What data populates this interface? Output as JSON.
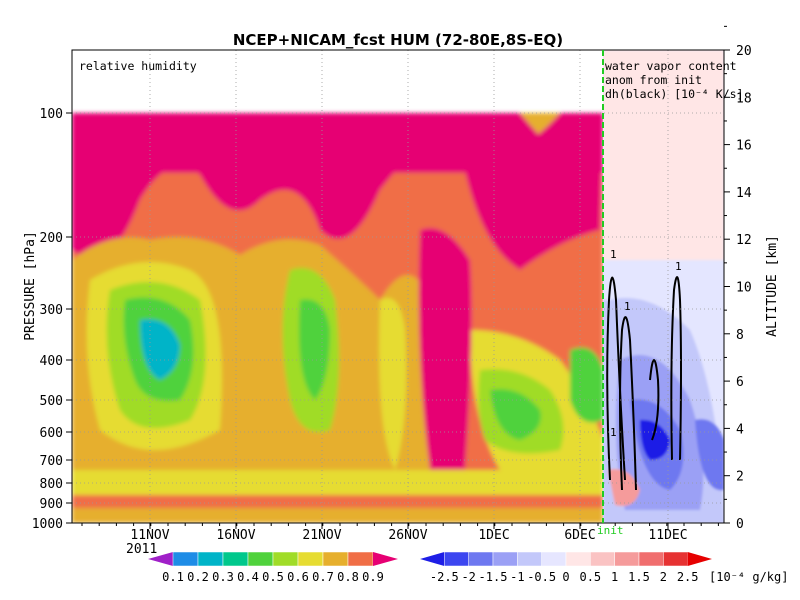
{
  "chart_data": {
    "type": "heatmap",
    "title": "NCEP+NICAM_fcst HUM (72-80E,8S-EQ)",
    "left_panel_label": "relative humidity",
    "right_panel_label": [
      "water vapor content",
      "anom from init",
      "dh(black) [10⁻⁴ K/s]"
    ],
    "ylabel_left": "PRESSURE [hPa]",
    "ylabel_right": "ALTITUDE [km]",
    "pressure_ticks": [
      "100",
      "200",
      "300",
      "400",
      "500",
      "600",
      "700",
      "800",
      "900",
      "1000"
    ],
    "altitude_ticks": [
      "0",
      "2",
      "4",
      "6",
      "8",
      "10",
      "12",
      "14",
      "16",
      "18",
      "20"
    ],
    "date_ticks": [
      "11NOV",
      "16NOV",
      "21NOV",
      "26NOV",
      "1DEC",
      "6DEC",
      "11DEC"
    ],
    "year_label": "2011",
    "init_marker_label": "init",
    "contour_labels": [
      "1",
      "1",
      "1",
      "1"
    ],
    "colorbar_rh": {
      "levels": [
        "0.1",
        "0.2",
        "0.3",
        "0.4",
        "0.5",
        "0.6",
        "0.7",
        "0.8",
        "0.9"
      ],
      "colors": [
        "#a020c8",
        "#1e8ce6",
        "#00b4c8",
        "#00c88c",
        "#50d23c",
        "#a0dc28",
        "#e6dc32",
        "#e6af2d",
        "#f06e46",
        "#e60073"
      ]
    },
    "colorbar_anom": {
      "levels": [
        "-2.5",
        "-2",
        "-1.5",
        "-1",
        "-0.5",
        "0",
        "0.5",
        "1",
        "1.5",
        "2",
        "2.5"
      ],
      "units": "[10⁻⁴ g/kg]",
      "colors": [
        "#1e1ee6",
        "#3c46f0",
        "#6e78f0",
        "#9ba0f5",
        "#c3c8fa",
        "#e6e6ff",
        "#ffe6e6",
        "#fac3c3",
        "#f59b9b",
        "#f06e6e",
        "#e63232",
        "#e60000"
      ]
    }
  }
}
